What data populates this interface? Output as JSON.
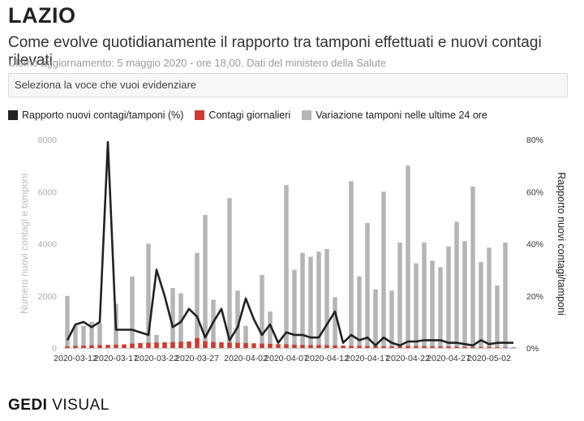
{
  "header": {
    "title": "LAZIO",
    "subtitle": "Come evolve quotidianamente il rapporto tra tamponi effettuati e nuovi contagi rilevati",
    "note": "Ultimo aggiornamento: 5 maggio 2020 - ore 18,00. Dati del ministero della Salute"
  },
  "selector": {
    "placeholder": "Seleziona la voce che vuoi evidenziare"
  },
  "legend": [
    {
      "label": "Rapporto nuovi contagi/tamponi (%)",
      "color": "#222222",
      "kind": "line"
    },
    {
      "label": "Contagi giornalieri",
      "color": "#d03a2e",
      "kind": "bar"
    },
    {
      "label": "Variazione tamponi nelle ultime 24 ore",
      "color": "#b5b5b5",
      "kind": "bar"
    }
  ],
  "footer": {
    "brand_bold": "GEDI",
    "brand_light": "VISUAL"
  },
  "chart_data": {
    "type": "bar+line",
    "x": [
      "2020-03-11",
      "2020-03-12",
      "2020-03-13",
      "2020-03-14",
      "2020-03-15",
      "2020-03-16",
      "2020-03-17",
      "2020-03-18",
      "2020-03-19",
      "2020-03-20",
      "2020-03-21",
      "2020-03-22",
      "2020-03-23",
      "2020-03-24",
      "2020-03-25",
      "2020-03-26",
      "2020-03-27",
      "2020-03-28",
      "2020-03-29",
      "2020-03-30",
      "2020-03-31",
      "2020-04-01",
      "2020-04-02",
      "2020-04-03",
      "2020-04-04",
      "2020-04-05",
      "2020-04-06",
      "2020-04-07",
      "2020-04-08",
      "2020-04-09",
      "2020-04-10",
      "2020-04-11",
      "2020-04-12",
      "2020-04-13",
      "2020-04-14",
      "2020-04-15",
      "2020-04-16",
      "2020-04-17",
      "2020-04-18",
      "2020-04-19",
      "2020-04-20",
      "2020-04-21",
      "2020-04-22",
      "2020-04-23",
      "2020-04-24",
      "2020-04-25",
      "2020-04-26",
      "2020-04-27",
      "2020-04-28",
      "2020-04-29",
      "2020-04-30",
      "2020-05-01",
      "2020-05-02",
      "2020-05-03",
      "2020-05-04",
      "2020-05-05"
    ],
    "xticks": [
      "2020-03-12",
      "2020-03-17",
      "2020-03-22",
      "2020-03-27",
      "2020-04-02",
      "2020-04-07",
      "2020-04-12",
      "2020-04-17",
      "2020-04-22",
      "2020-04-27",
      "2020-05-02"
    ],
    "series": [
      {
        "name": "Variazione tamponi nelle ultime 24 ore",
        "type": "bar",
        "axis": "left",
        "values": [
          2000,
          850,
          850,
          1000,
          950,
          0,
          1700,
          0,
          2750,
          0,
          4000,
          500,
          0,
          2300,
          2100,
          0,
          3650,
          5100,
          1850,
          0,
          5750,
          2200,
          850,
          0,
          2800,
          1400,
          0,
          6250,
          3000,
          3650,
          3500,
          3700,
          3800,
          1950,
          0,
          6400,
          2750,
          4800,
          2250,
          6000,
          2200,
          4050,
          7000,
          3250,
          4050,
          3350,
          3100,
          3900,
          4850,
          4100,
          6200,
          3300,
          3850,
          2400,
          4050,
          0
        ]
      },
      {
        "name": "Contagi giornalieri",
        "type": "bar",
        "axis": "left",
        "values": [
          60,
          80,
          90,
          100,
          110,
          120,
          130,
          140,
          170,
          190,
          200,
          210,
          220,
          230,
          240,
          250,
          380,
          260,
          230,
          220,
          210,
          200,
          190,
          180,
          170,
          160,
          150,
          140,
          130,
          120,
          110,
          115,
          110,
          100,
          90,
          80,
          85,
          75,
          70,
          65,
          60,
          70,
          80,
          75,
          70,
          65,
          60,
          55,
          50,
          45,
          40,
          35,
          40,
          30,
          25,
          20
        ]
      },
      {
        "name": "Rapporto nuovi contagi/tamponi (%)",
        "type": "line",
        "axis": "right",
        "values": [
          3,
          9,
          10,
          8,
          10,
          79,
          7,
          7,
          7,
          6,
          5,
          30,
          20,
          8,
          10,
          15,
          12,
          4,
          10,
          15,
          3,
          8,
          19,
          11,
          5,
          9,
          2,
          6,
          5,
          5,
          4,
          4,
          9,
          14,
          2,
          5,
          3,
          4,
          1,
          4,
          2,
          1,
          2.5,
          2.5,
          3,
          3,
          3,
          2,
          2,
          1.5,
          1,
          3,
          1.5,
          2,
          2,
          2
        ]
      }
    ],
    "ylabel": "Numero nuovi contagi e tamponi",
    "ylim": [
      0,
      8000
    ],
    "yticks": [
      "0",
      "2000",
      "4000",
      "6000",
      "8000"
    ],
    "y2label": "Rapporto nuovi contagi/tamponi",
    "y2lim": [
      0,
      80
    ],
    "y2ticks": [
      "0%",
      "20%",
      "40%",
      "60%",
      "80%"
    ],
    "grid": false,
    "legend_position": "top"
  }
}
